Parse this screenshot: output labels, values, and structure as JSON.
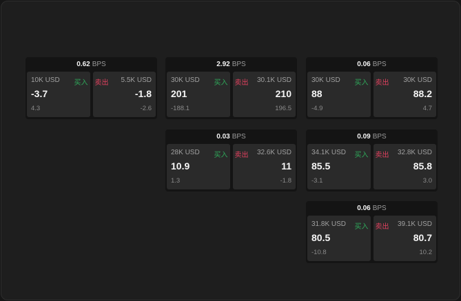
{
  "unit": "BPS",
  "buy_label": "买入",
  "sell_label": "卖出",
  "colors": {
    "buy": "#2fa85a",
    "sell": "#e0405e"
  },
  "cards": [
    {
      "spread": "0.62",
      "buy": {
        "qty": "10K USD",
        "price": "-3.7",
        "change": "4.3"
      },
      "sell": {
        "qty": "5.5K USD",
        "price": "-1.8",
        "change": "-2.6"
      }
    },
    {
      "spread": "2.92",
      "buy": {
        "qty": "30K USD",
        "price": "201",
        "change": "-188.1"
      },
      "sell": {
        "qty": "30.1K USD",
        "price": "210",
        "change": "196.5"
      }
    },
    {
      "spread": "0.06",
      "buy": {
        "qty": "30K USD",
        "price": "88",
        "change": "-4.9"
      },
      "sell": {
        "qty": "30K USD",
        "price": "88.2",
        "change": "4.7"
      }
    },
    {
      "spread": "0.03",
      "buy": {
        "qty": "28K USD",
        "price": "10.9",
        "change": "1.3"
      },
      "sell": {
        "qty": "32.6K USD",
        "price": "11",
        "change": "-1.8"
      }
    },
    {
      "spread": "0.09",
      "buy": {
        "qty": "34.1K USD",
        "price": "85.5",
        "change": "-3.1"
      },
      "sell": {
        "qty": "32.8K USD",
        "price": "85.8",
        "change": "3.0"
      }
    },
    {
      "spread": "0.06",
      "buy": {
        "qty": "31.8K USD",
        "price": "80.5",
        "change": "-10.8"
      },
      "sell": {
        "qty": "39.1K USD",
        "price": "80.7",
        "change": "10.2"
      }
    }
  ]
}
